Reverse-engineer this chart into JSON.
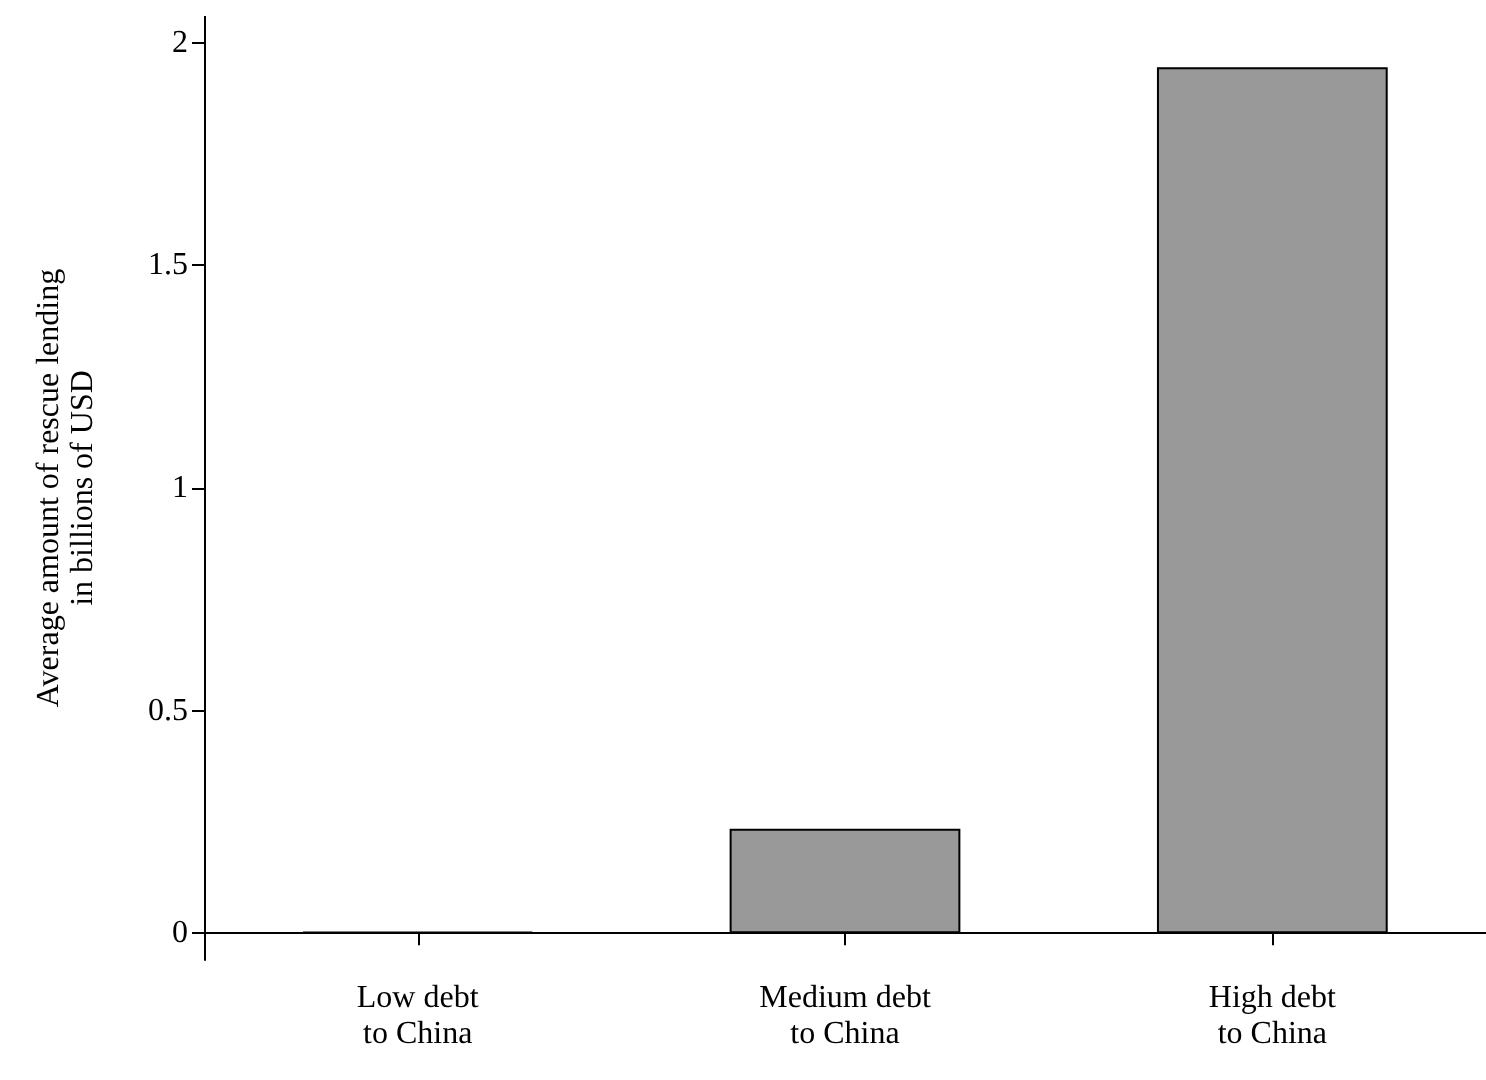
{
  "chart_data": {
    "type": "bar",
    "ylabel": "Average amount of rescue lending\nin billions of USD",
    "categories": [
      "Low debt\nto China",
      "Medium debt\nto China",
      "High debt\nto China"
    ],
    "values": [
      0.003,
      0.235,
      1.945
    ],
    "color": "#999999",
    "ylim": [
      -0.06,
      2.06
    ],
    "yticks": [
      0,
      0.5,
      1,
      1.5,
      2
    ],
    "grid": false
  }
}
